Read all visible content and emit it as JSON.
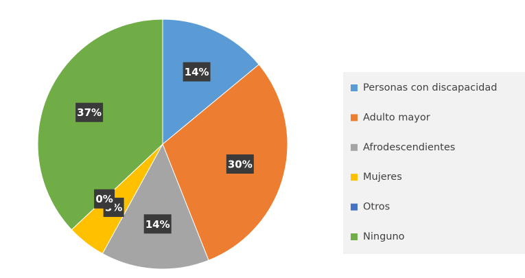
{
  "chart_data": {
    "type": "pie",
    "categories": [
      "Personas con discapacidad",
      "Adulto mayor",
      "Afrodescendientes",
      "Mujeres",
      "Otros",
      "Ninguno"
    ],
    "values": [
      14,
      30,
      14,
      5,
      0,
      37
    ],
    "value_labels": [
      "14%",
      "30%",
      "14%",
      "5%",
      "0%",
      "37%"
    ],
    "colors": [
      "#5b9bd5",
      "#ed7d31",
      "#a5a5a5",
      "#ffc000",
      "#4472c4",
      "#70ad47"
    ],
    "legend": "right"
  }
}
